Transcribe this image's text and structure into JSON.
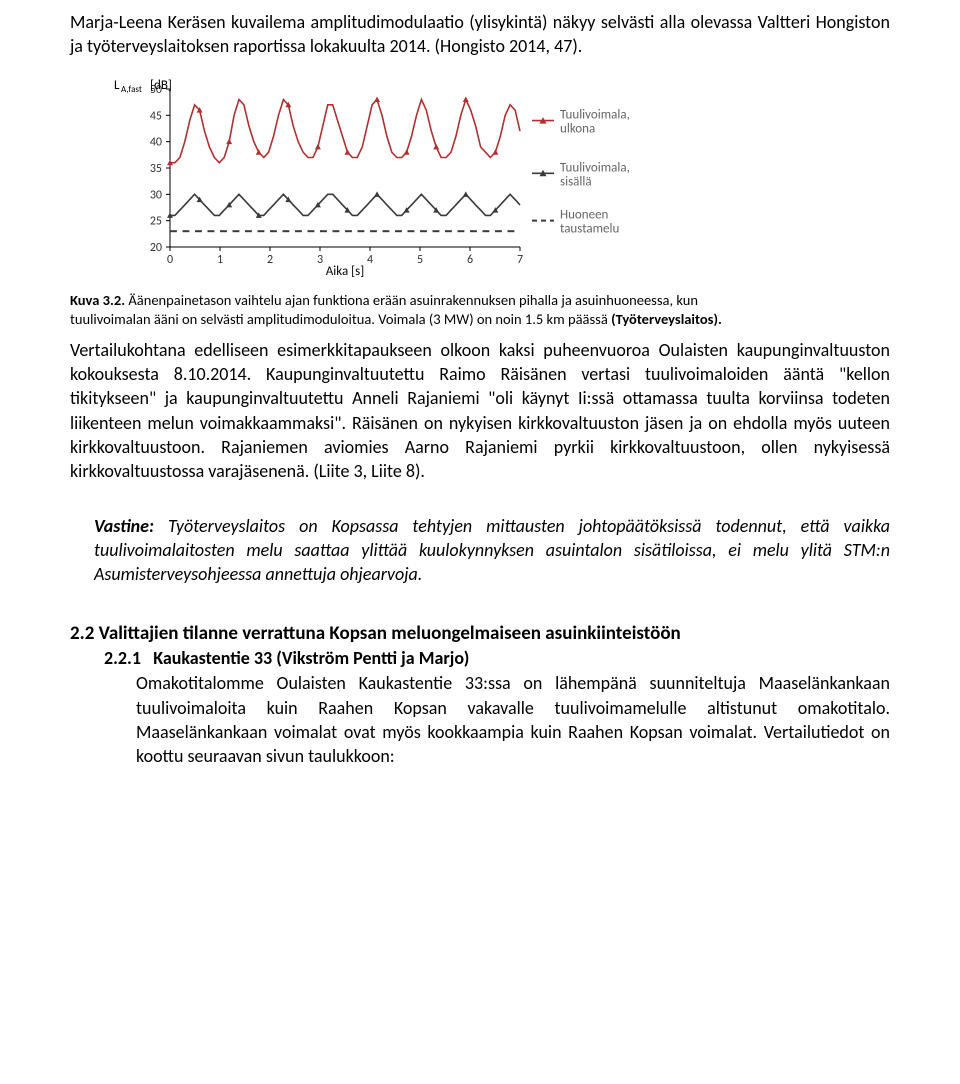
{
  "intro_para": "Marja-Leena Keräsen kuvailema amplitudimodulaatio (ylisykintä) näkyy selvästi alla olevassa Valtteri Hongiston ja työterveyslaitoksen raportissa lokakuulta 2014. (Hongisto 2014, 47).",
  "chart": {
    "y_label": "L_A,fast [dB]",
    "y_ticks": [
      20,
      25,
      30,
      35,
      40,
      45,
      50
    ],
    "x_label": "Aika [s]",
    "x_ticks": [
      0,
      1,
      2,
      3,
      4,
      5,
      6,
      7
    ],
    "legend": [
      {
        "label_top": "Tuulivoimala,",
        "label_bottom": "ulkona",
        "marker": "triangle",
        "color": "#b03030"
      },
      {
        "label_top": "Tuulivoimala,",
        "label_bottom": "sisällä",
        "marker": "triangle",
        "color": "#3a3a3a"
      },
      {
        "label_top": "Huoneen",
        "label_bottom": "taustamelu",
        "marker": "dash",
        "color": "#3a3a3a"
      }
    ],
    "series_outdoor": {
      "color": "#b03030",
      "y": [
        36,
        36,
        37,
        40,
        44,
        47,
        46,
        42,
        39,
        37,
        36,
        37,
        40,
        45,
        48,
        47,
        43,
        40,
        38,
        37,
        38,
        41,
        45,
        48,
        47,
        43,
        40,
        38,
        37,
        37,
        39,
        43,
        47,
        47,
        44,
        41,
        38,
        37,
        37,
        39,
        43,
        47,
        48,
        45,
        41,
        38,
        37,
        37,
        38,
        41,
        45,
        48,
        46,
        42,
        39,
        37,
        37,
        38,
        41,
        45,
        48,
        46,
        43,
        39,
        38,
        37,
        38,
        41,
        45,
        47,
        46,
        42
      ]
    },
    "series_indoor": {
      "color": "#3a3a3a",
      "y": [
        26,
        26,
        27,
        28,
        29,
        30,
        29,
        28,
        27,
        26,
        26,
        27,
        28,
        29,
        30,
        29,
        28,
        27,
        26,
        26,
        27,
        28,
        29,
        30,
        29,
        28,
        27,
        26,
        26,
        27,
        28,
        29,
        30,
        30,
        29,
        28,
        27,
        26,
        26,
        27,
        28,
        29,
        30,
        29,
        28,
        27,
        26,
        26,
        27,
        28,
        29,
        30,
        29,
        28,
        27,
        26,
        26,
        27,
        28,
        29,
        30,
        29,
        28,
        27,
        26,
        26,
        27,
        28,
        29,
        30,
        29,
        28
      ]
    },
    "series_bg": {
      "color": "#3a3a3a",
      "y": 23,
      "style": "dash"
    }
  },
  "fig_caption_lead": "Kuva 3.2. ",
  "fig_caption_body": "Äänenpainetason vaihtelu ajan funktiona erään asuinrakennuksen pihalla ja asuinhuoneessa, kun tuulivoimalan ääni on selvästi amplitudimoduloitua. Voimala (3 MW) on noin 1.5 km päässä ",
  "fig_caption_tail": "(Työterveyslaitos).",
  "middle_para": "Vertailukohtana edelliseen esimerkkitapaukseen olkoon kaksi puheenvuoroa Oulaisten kaupunginvaltuuston kokouksesta 8.10.2014. Kaupunginvaltuutettu Raimo Räisänen vertasi tuulivoimaloiden ääntä \"kellon tikitykseen\" ja kaupunginvaltuutettu Anneli Rajaniemi \"oli käynyt Ii:ssä ottamassa tuulta korviinsa todeten liikenteen melun voimakkaammaksi\". Räisänen on nykyisen kirkkovaltuuston jäsen ja on ehdolla myös uuteen kirkkovaltuustoon. Rajaniemen aviomies Aarno Rajaniemi pyrkii kirkkovaltuustoon, ollen nykyisessä kirkkovaltuustossa varajäsenenä. (Liite 3, Liite 8).",
  "vastine_lead": "Vastine:",
  "vastine_body": " Työterveyslaitos on Kopsassa tehtyjen mittausten johtopäätöksissä todennut, että vaikka tuulivoimalaitosten melu saattaa ylittää kuulokynnyksen asuintalon sisätiloissa, ei melu ylitä STM:n Asumisterveysohjeessa annettuja ohjearvoja.",
  "h2_num": "2.2",
  "h2_text": "Valittajien tilanne verrattuna Kopsan meluongelmaiseen asuinkiinteistöön",
  "h3_num": "2.2.1",
  "h3_text": "Kaukastentie 33 (Vikström Pentti ja Marjo)",
  "h3_para": "Omakotitalomme Oulaisten Kaukastentie 33:ssa on lähempänä suunniteltuja Maaselänkankaan tuulivoimaloita kuin Raahen Kopsan vakavalle tuulivoimamelulle altistunut omakotitalo. Maaselänkankaan voimalat ovat myös kookkaampia kuin Raahen Kopsan voimalat. Vertailutiedot on koottu seuraavan sivun taulukkoon:"
}
